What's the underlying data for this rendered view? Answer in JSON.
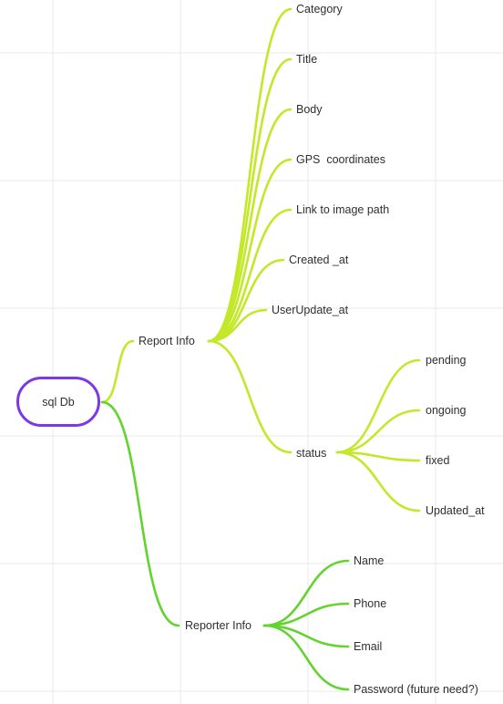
{
  "root": {
    "label": "sql Db"
  },
  "report_info": {
    "label": "Report Info",
    "children": [
      "Category",
      "Title",
      "Body",
      "GPS  coordinates",
      "Link to image path",
      "Created _at",
      "UserUpdate_at"
    ],
    "status": {
      "label": "status",
      "children": [
        "pending",
        "ongoing",
        "fixed",
        "Updated_at"
      ]
    }
  },
  "reporter_info": {
    "label": "Reporter Info",
    "children": [
      "Name",
      "Phone",
      "Email",
      "Password (future need?)"
    ]
  },
  "colors": {
    "root_border": "#7b38e8",
    "report_branch": "#c3e82a",
    "reporter_branch": "#62d32f",
    "grid": "#e9e9e9"
  }
}
